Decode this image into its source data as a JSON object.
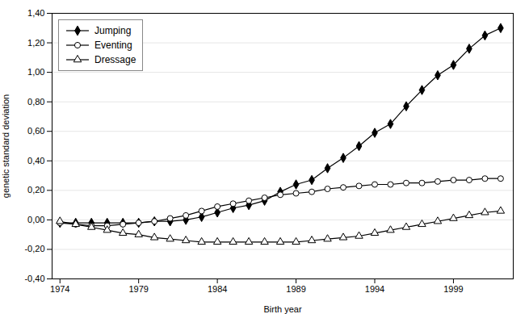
{
  "chart_data": {
    "type": "line",
    "xlabel": "Birth year",
    "ylabel": "genetic standard deviation",
    "x": [
      1974,
      1975,
      1976,
      1977,
      1978,
      1979,
      1980,
      1981,
      1982,
      1983,
      1984,
      1985,
      1986,
      1987,
      1988,
      1989,
      1990,
      1991,
      1992,
      1993,
      1994,
      1995,
      1996,
      1997,
      1998,
      1999,
      2000,
      2001,
      2002
    ],
    "series": [
      {
        "name": "Jumping",
        "color": "#000000",
        "marker": "diamond",
        "values": [
          -0.02,
          -0.02,
          -0.02,
          -0.02,
          -0.02,
          -0.02,
          -0.01,
          -0.01,
          0.0,
          0.02,
          0.05,
          0.08,
          0.1,
          0.13,
          0.19,
          0.24,
          0.27,
          0.35,
          0.42,
          0.5,
          0.59,
          0.65,
          0.77,
          0.88,
          0.98,
          1.05,
          1.16,
          1.25,
          1.3
        ]
      },
      {
        "name": "Eventing",
        "color": "#000000",
        "marker": "circle-open",
        "values": [
          -0.02,
          -0.03,
          -0.04,
          -0.04,
          -0.03,
          -0.02,
          -0.01,
          0.01,
          0.03,
          0.06,
          0.09,
          0.11,
          0.13,
          0.15,
          0.17,
          0.18,
          0.19,
          0.21,
          0.22,
          0.23,
          0.24,
          0.24,
          0.25,
          0.25,
          0.26,
          0.27,
          0.27,
          0.28,
          0.28
        ]
      },
      {
        "name": "Dressage",
        "color": "#000000",
        "marker": "triangle-open",
        "values": [
          -0.01,
          -0.03,
          -0.05,
          -0.07,
          -0.09,
          -0.1,
          -0.12,
          -0.13,
          -0.14,
          -0.15,
          -0.15,
          -0.15,
          -0.15,
          -0.15,
          -0.15,
          -0.15,
          -0.14,
          -0.13,
          -0.12,
          -0.11,
          -0.09,
          -0.07,
          -0.05,
          -0.03,
          -0.01,
          0.01,
          0.03,
          0.05,
          0.06
        ]
      }
    ],
    "xlim": [
      1973.5,
      2002.8
    ],
    "ylim": [
      -0.4,
      1.4
    ],
    "xticks": [
      1974,
      1979,
      1984,
      1989,
      1994,
      1999
    ],
    "yticks": [
      {
        "value": -0.4,
        "label": "-0,40"
      },
      {
        "value": -0.2,
        "label": "-0,20"
      },
      {
        "value": 0.0,
        "label": "0,00"
      },
      {
        "value": 0.2,
        "label": "0,20"
      },
      {
        "value": 0.4,
        "label": "0,40"
      },
      {
        "value": 0.6,
        "label": "0,60"
      },
      {
        "value": 0.8,
        "label": "0,80"
      },
      {
        "value": 1.0,
        "label": "1,00"
      },
      {
        "value": 1.2,
        "label": "1,20"
      },
      {
        "value": 1.4,
        "label": "1,40"
      }
    ],
    "grid": true,
    "legend": "upper left"
  }
}
